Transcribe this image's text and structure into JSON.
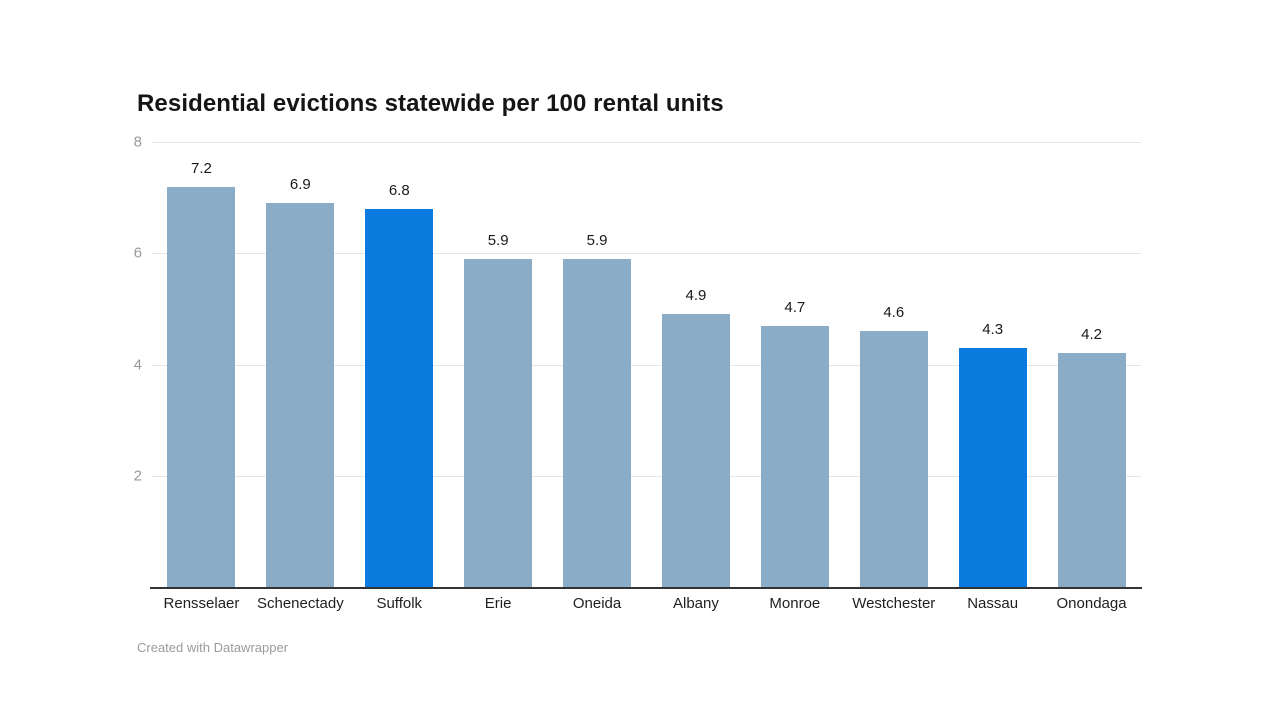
{
  "header": {
    "title": "Residential evictions statewide per 100 rental units"
  },
  "footer": {
    "credit": "Created with Datawrapper"
  },
  "chart_data": {
    "type": "bar",
    "title": "Residential evictions statewide per 100 rental units",
    "categories": [
      "Rensselaer",
      "Schenectady",
      "Suffolk",
      "Erie",
      "Oneida",
      "Albany",
      "Monroe",
      "Westchester",
      "Nassau",
      "Onondaga"
    ],
    "values": [
      7.2,
      6.9,
      6.8,
      5.9,
      5.9,
      4.9,
      4.7,
      4.6,
      4.3,
      4.2
    ],
    "value_labels": [
      "7.2",
      "6.9",
      "6.8",
      "5.9",
      "5.9",
      "4.9",
      "4.7",
      "4.6",
      "4.3",
      "4.2"
    ],
    "highlighted_categories": [
      "Suffolk",
      "Nassau"
    ],
    "xlabel": "",
    "ylabel": "",
    "ylim": [
      0,
      8
    ],
    "yticks": [
      2,
      4,
      6,
      8
    ],
    "ytick_labels": [
      "2",
      "4",
      "6",
      "8"
    ],
    "grid": "horizontal-only",
    "legend": "none",
    "colors": {
      "default_bar": "#8aacc6",
      "highlight_bar": "#0b7bdf",
      "gridline": "#e6e6e6",
      "axis_tick_text": "#9a9a9a",
      "baseline": "#333333",
      "value_label": "#1a1a1a",
      "category_label": "#1f1f1f",
      "title": "#151515",
      "credit": "#9b9b9b"
    }
  }
}
